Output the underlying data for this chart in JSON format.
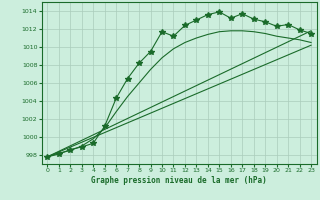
{
  "title": "Graphe pression niveau de la mer (hPa)",
  "bg_color": "#cceedd",
  "grid_color": "#aaccbb",
  "line_color": "#1a6b2a",
  "xlim": [
    -0.5,
    23.5
  ],
  "ylim": [
    997.0,
    1015.0
  ],
  "xticks": [
    0,
    1,
    2,
    3,
    4,
    5,
    6,
    7,
    8,
    9,
    10,
    11,
    12,
    13,
    14,
    15,
    16,
    17,
    18,
    19,
    20,
    21,
    22,
    23
  ],
  "yticks": [
    998,
    1000,
    1002,
    1004,
    1006,
    1008,
    1010,
    1012,
    1014
  ],
  "main_x": [
    0,
    1,
    2,
    3,
    4,
    5,
    6,
    7,
    8,
    9,
    10,
    11,
    12,
    13,
    14,
    15,
    16,
    17,
    18,
    19,
    20,
    21,
    22,
    23
  ],
  "main_y": [
    997.8,
    998.1,
    998.6,
    998.9,
    999.3,
    1001.2,
    1004.3,
    1006.5,
    1008.2,
    1009.5,
    1011.7,
    1011.2,
    1012.4,
    1013.0,
    1013.6,
    1013.9,
    1013.2,
    1013.7,
    1013.1,
    1012.8,
    1012.3,
    1012.5,
    1011.9,
    1011.5
  ],
  "smooth_x": [
    0,
    1,
    2,
    3,
    4,
    5,
    6,
    7,
    8,
    9,
    10,
    11,
    12,
    13,
    14,
    15,
    16,
    17,
    18,
    19,
    20,
    21,
    22,
    23
  ],
  "smooth_y": [
    997.8,
    998.2,
    998.5,
    999.0,
    999.8,
    1001.0,
    1002.8,
    1004.5,
    1006.0,
    1007.5,
    1008.8,
    1009.8,
    1010.5,
    1011.0,
    1011.4,
    1011.7,
    1011.8,
    1011.8,
    1011.7,
    1011.5,
    1011.2,
    1011.0,
    1010.8,
    1010.5
  ],
  "trend1_x": [
    0,
    23
  ],
  "trend1_y": [
    997.8,
    1011.8
  ],
  "trend2_x": [
    0,
    23
  ],
  "trend2_y": [
    997.8,
    1010.2
  ]
}
